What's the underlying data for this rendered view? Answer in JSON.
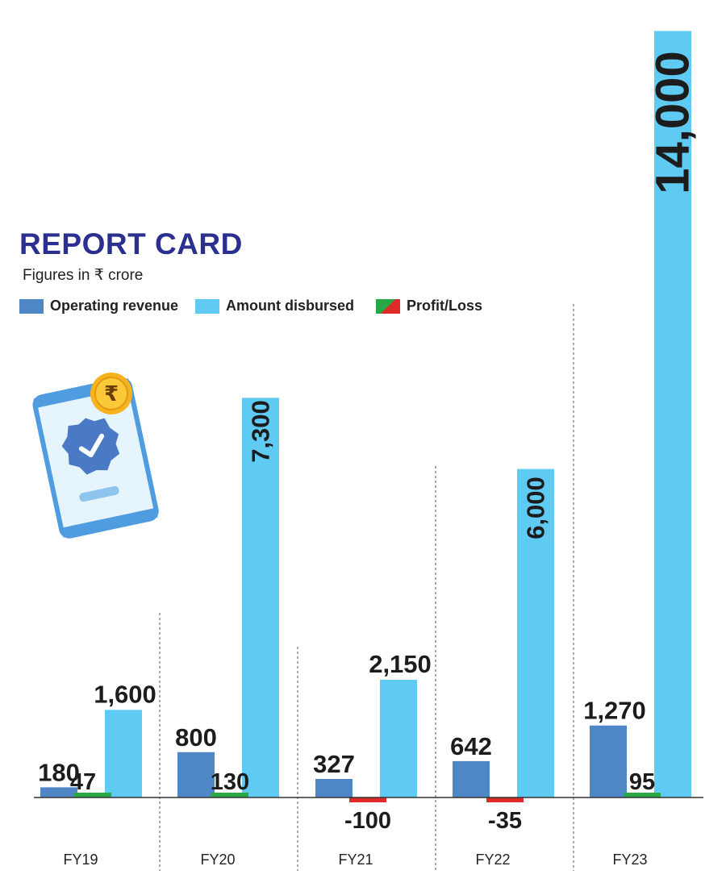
{
  "title": "REPORT CARD",
  "subtitle": "Figures in ₹ crore",
  "legend": [
    {
      "label": "Operating revenue",
      "color": "#4f86c6"
    },
    {
      "label": "Amount disbursed",
      "color": "#5fcaf2"
    },
    {
      "label": "Profit/Loss",
      "colors": [
        "#27a845",
        "#e02a2a"
      ]
    }
  ],
  "icon": {
    "glyph": "₹"
  },
  "chart_data": {
    "type": "bar",
    "categories": [
      "FY19",
      "FY20",
      "FY21",
      "FY22",
      "FY23"
    ],
    "series": [
      {
        "name": "Operating revenue",
        "values": [
          180,
          800,
          327,
          642,
          1270
        ],
        "labels": [
          "180",
          "800",
          "327",
          "642",
          "1,270"
        ],
        "color": "#4f86c6"
      },
      {
        "name": "Amount disbursed",
        "values": [
          1600,
          7300,
          2150,
          6000,
          14000
        ],
        "labels": [
          "1,600",
          "7,300",
          "2,150",
          "6,000",
          "14,000"
        ],
        "color": "#5fcaf2"
      },
      {
        "name": "Profit/Loss",
        "values": [
          47,
          130,
          -100,
          -35,
          95
        ],
        "labels": [
          "47",
          "130",
          "-100",
          "-35",
          "95"
        ],
        "color_positive": "#27a845",
        "color_negative": "#e02a2a"
      }
    ],
    "grid": false
  }
}
